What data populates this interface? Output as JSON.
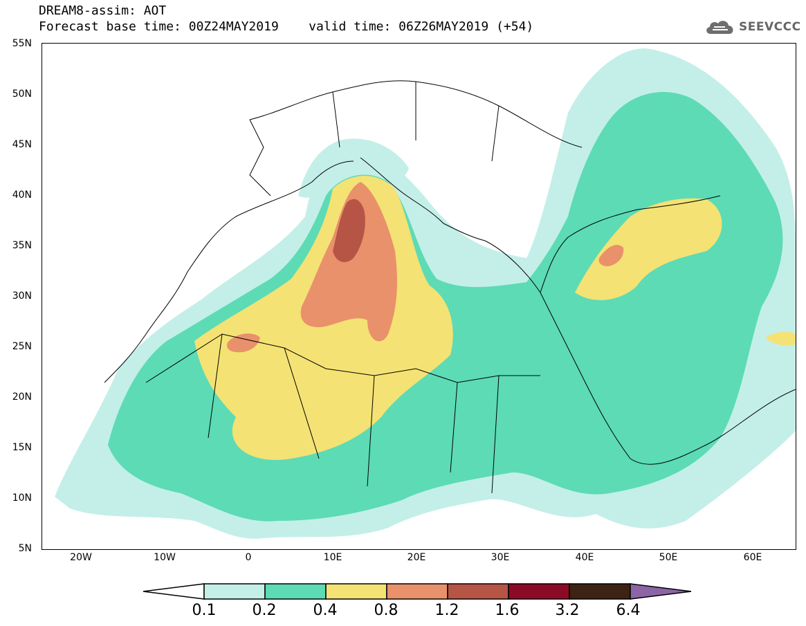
{
  "header": {
    "line1": "DREAM8-assim: AOT",
    "line2_base": "Forecast base time: 00Z24MAY2019",
    "line2_valid": "valid time: 06Z26MAY2019 (+54)"
  },
  "logo": {
    "text": "SEEVCCC",
    "icon": "cloud-icon",
    "color": "#6e6e6e"
  },
  "axes": {
    "lat_ticks": [
      "55N",
      "50N",
      "45N",
      "40N",
      "35N",
      "30N",
      "25N",
      "20N",
      "15N",
      "10N",
      "5N"
    ],
    "lon_ticks": [
      "20W",
      "10W",
      "0",
      "10E",
      "20E",
      "30E",
      "40E",
      "50E",
      "60E"
    ]
  },
  "colorbar": {
    "labels": [
      "0.1",
      "0.2",
      "0.4",
      "0.8",
      "1.2",
      "1.6",
      "3.2",
      "6.4"
    ],
    "colors": [
      "#ffffff",
      "#c3efe8",
      "#5cdbb5",
      "#f4e274",
      "#e9916b",
      "#b65546",
      "#8b0b26",
      "#3d2313",
      "#8d65a6"
    ]
  }
}
